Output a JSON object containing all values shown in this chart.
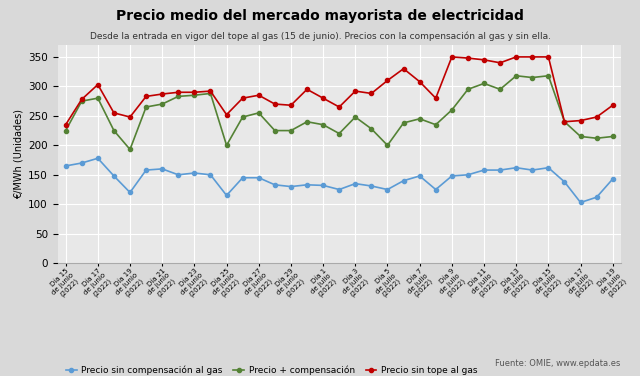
{
  "title": "Precio medio del mercado mayorista de electricidad",
  "subtitle": "Desde la entrada en vigor del tope al gas (15 de junio). Precios con la compensación al gas y sin ella.",
  "ylabel": "€/MWh (Unidades)",
  "source": "Fuente: OMIE, www.epdata.es",
  "x_labels_shown": [
    "Día 15\nde junio\n(2022)",
    "Día 17\nde junio\n(2022)",
    "Día 19\nde junio\n(2022)",
    "Día 21\nde junio\n(2022)",
    "Día 23\nde junio\n(2022)",
    "Día 25\nde junio\n(2022)",
    "Día 27\nde junio\n(2022)",
    "Día 29\nde junio\n(2022)",
    "Día 1\nde julio\n(2022)",
    "Día 3\nde julio\n(2022)",
    "Día 5\nde julio\n(2022)",
    "Día 7\nde julio\n(2022)",
    "Día 9\nde julio\n(2022)",
    "Día 11\nde julio\n(2022)",
    "Día 13\nde julio\n(2022)",
    "Día 15\nde julio\n(2022)",
    "Día 17\nde julio\n(2022)",
    "Día 19\nde julio\n(2022)"
  ],
  "x_tick_positions": [
    0,
    2,
    4,
    6,
    8,
    10,
    12,
    14,
    16,
    18,
    20,
    22,
    24,
    26,
    28,
    30,
    32,
    34
  ],
  "sin_compensacion": [
    165,
    170,
    178,
    148,
    120,
    158,
    160,
    150,
    153,
    150,
    115,
    145,
    145,
    133,
    130,
    133,
    132,
    125,
    135,
    131,
    125,
    140,
    148,
    125,
    148,
    150,
    158,
    158,
    162,
    158,
    162,
    138,
    103,
    112,
    143
  ],
  "con_compensacion": [
    225,
    275,
    280,
    225,
    193,
    265,
    270,
    283,
    285,
    288,
    200,
    248,
    255,
    225,
    225,
    240,
    235,
    220,
    248,
    228,
    200,
    238,
    245,
    235,
    260,
    295,
    305,
    295,
    318,
    315,
    318,
    240,
    215,
    212,
    215
  ],
  "sin_tope": [
    235,
    278,
    303,
    255,
    248,
    283,
    287,
    290,
    290,
    292,
    252,
    280,
    285,
    270,
    268,
    295,
    280,
    265,
    292,
    288,
    310,
    330,
    308,
    280,
    350,
    348,
    345,
    340,
    350,
    350,
    350,
    240,
    242,
    248,
    268
  ],
  "color_sin_comp": "#5b9bd5",
  "color_con_comp": "#548235",
  "color_sin_tope": "#c00000",
  "ylim": [
    0,
    370
  ],
  "yticks": [
    0,
    50,
    100,
    150,
    200,
    250,
    300,
    350
  ],
  "legend_labels": [
    "Precio sin compensación al gas",
    "Precio + compensación",
    "Precio sin tope al gas"
  ],
  "bg_color": "#d9d9d9",
  "plot_bg_color": "#e8e8e8",
  "grid_color": "#ffffff"
}
